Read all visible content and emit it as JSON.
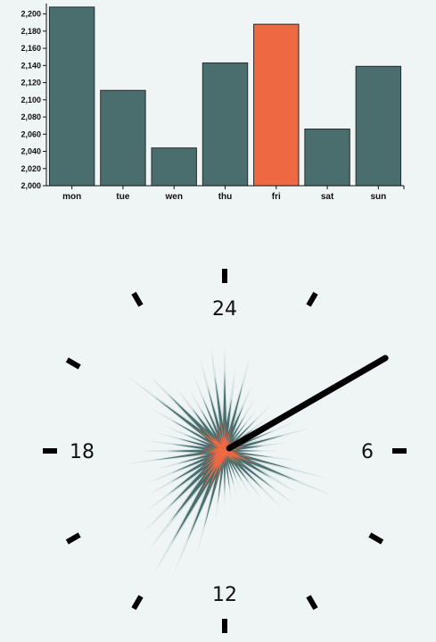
{
  "chart_data": [
    {
      "type": "bar",
      "categories": [
        "mon",
        "tue",
        "wen",
        "thu",
        "fri",
        "sat",
        "sun"
      ],
      "values": [
        2208,
        2111,
        2044,
        2143,
        2188,
        2066,
        2139
      ],
      "highlight": "fri",
      "ylim": [
        2000,
        2210
      ],
      "yticks": [
        "2,000",
        "2,020",
        "2,040",
        "2,060",
        "2,080",
        "2,100",
        "2,120",
        "2,140",
        "2,160",
        "2,180",
        "2,200"
      ],
      "ytick_values": [
        2000,
        2020,
        2040,
        2060,
        2080,
        2100,
        2120,
        2140,
        2160,
        2180,
        2200
      ],
      "grid": false,
      "colors": {
        "bar": "#4a6d6e",
        "highlight": "#ee6842",
        "stroke": "#2b2b2b"
      }
    },
    {
      "type": "radial-area",
      "hour_labels": [
        {
          "hour": 0,
          "label": "24"
        },
        {
          "hour": 6,
          "label": "6"
        },
        {
          "hour": 12,
          "label": "12"
        },
        {
          "hour": 18,
          "label": "18"
        }
      ],
      "tick_hours": [
        0,
        2,
        4,
        6,
        8,
        10,
        12,
        14,
        16,
        18,
        20,
        22
      ],
      "hand_hour": 4.0,
      "series": [
        {
          "values": [
            120,
            95,
            110,
            80,
            70,
            60,
            75,
            65,
            55,
            90,
            100,
            70,
            60,
            85,
            120,
            130,
            95,
            100,
            90,
            70,
            60,
            50,
            55,
            60,
            65,
            80,
            120,
            150,
            160,
            140,
            130,
            110,
            100,
            95,
            80,
            110,
            95,
            90,
            80,
            75,
            100,
            140,
            120,
            90,
            80,
            95,
            110,
            120
          ],
          "color": "#d6e3e3"
        },
        {
          "values": [
            90,
            60,
            80,
            55,
            45,
            40,
            50,
            40,
            35,
            60,
            70,
            45,
            40,
            55,
            80,
            90,
            60,
            70,
            60,
            45,
            40,
            35,
            40,
            45,
            50,
            60,
            90,
            110,
            120,
            100,
            90,
            80,
            70,
            65,
            55,
            80,
            65,
            60,
            55,
            50,
            70,
            100,
            90,
            60,
            55,
            65,
            75,
            85
          ],
          "color": "#4a6d6e"
        },
        {
          "values": [
            35,
            25,
            30,
            20,
            18,
            15,
            20,
            15,
            12,
            25,
            30,
            18,
            15,
            22,
            35,
            40,
            25,
            30,
            25,
            18,
            15,
            12,
            15,
            18,
            20,
            25,
            40,
            50,
            55,
            45,
            40,
            35,
            30,
            28,
            22,
            35,
            28,
            25,
            22,
            20,
            30,
            45,
            40,
            25,
            22,
            28,
            32,
            38
          ],
          "color": "#ee6842"
        }
      ]
    }
  ]
}
